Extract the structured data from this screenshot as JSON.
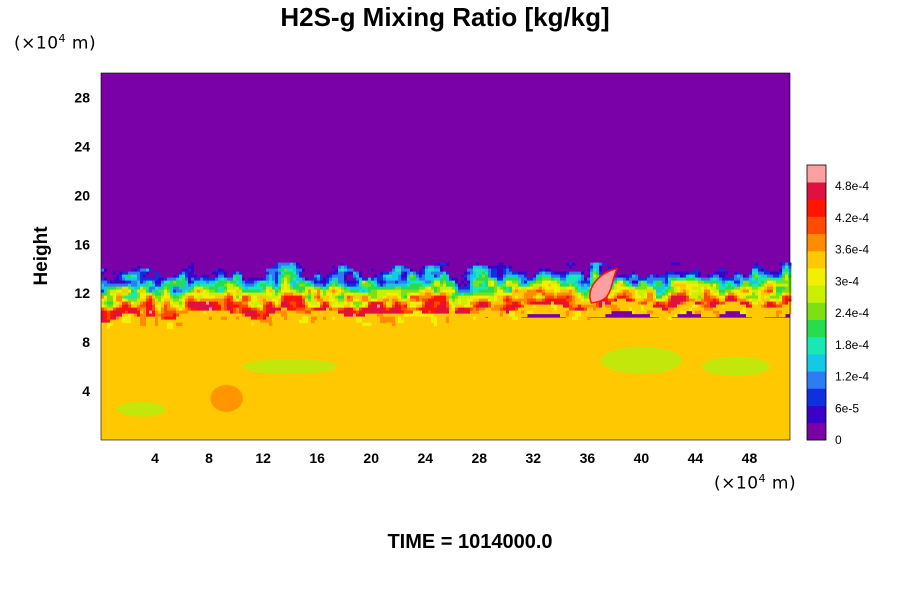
{
  "chart_data": {
    "type": "heatmap",
    "title": "H2S-g Mixing Ratio [kg/kg]",
    "ylabel": "Height",
    "x_unit": {
      "prefix": "(×10",
      "exp": "4",
      "suffix": " m)"
    },
    "y_unit": {
      "prefix": "(×10",
      "exp": "4",
      "suffix": " m)"
    },
    "time_label": "TIME = 1014000.0",
    "xlim": [
      0,
      51
    ],
    "ylim": [
      0,
      30
    ],
    "x_ticks": [
      4,
      8,
      12,
      16,
      20,
      24,
      28,
      32,
      36,
      40,
      44,
      48
    ],
    "y_ticks": [
      4,
      8,
      12,
      16,
      20,
      24,
      28
    ],
    "colorbar": {
      "range": [
        0,
        0.00052
      ],
      "tick_values": [
        0,
        6e-05,
        0.00012,
        0.00018,
        0.00024,
        0.0003,
        0.00036,
        0.00042,
        0.00048
      ],
      "tick_labels": [
        "0",
        "6e-5",
        "1.2e-4",
        "1.8e-4",
        "2.4e-4",
        "3e-4",
        "3.6e-4",
        "4.2e-4",
        "4.8e-4"
      ],
      "colors": [
        "#7a00a8",
        "#3a00c8",
        "#1030e0",
        "#2e7cf2",
        "#14c8e8",
        "#18e8b4",
        "#28dc50",
        "#7ce012",
        "#c8f000",
        "#f0f000",
        "#ffc800",
        "#ff8c00",
        "#ff4a00",
        "#ff1400",
        "#e01040",
        "#ffa0a0"
      ]
    },
    "layers": [
      {
        "name": "upper",
        "y_range": [
          14.5,
          30
        ],
        "value": 0
      },
      {
        "name": "mixing-front",
        "y_range": [
          10,
          14.5
        ],
        "value_min": 0,
        "value_max": 0.00052
      },
      {
        "name": "lower",
        "y_range": [
          0,
          10
        ],
        "value": 0.00034
      }
    ]
  }
}
